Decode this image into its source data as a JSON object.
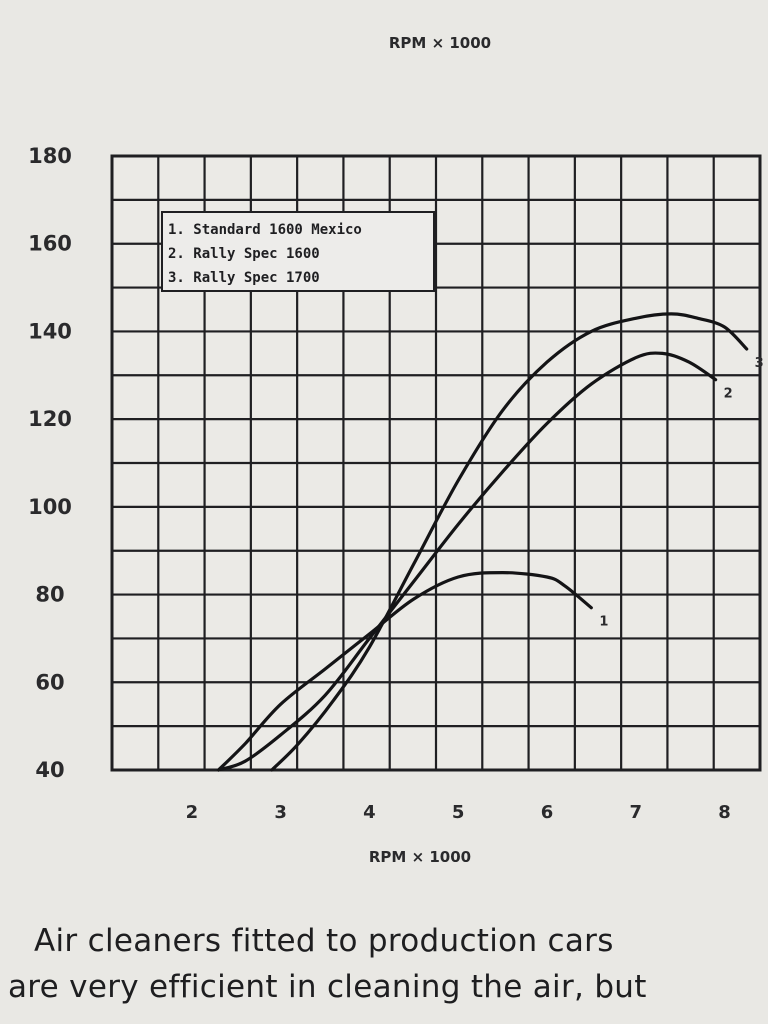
{
  "chart_data": {
    "type": "line",
    "title": "RPM × 1000",
    "xlabel": "RPM × 1000",
    "ylabel": "",
    "xlim": [
      1.1,
      8.4
    ],
    "ylim": [
      40,
      180
    ],
    "x_ticks": [
      "2",
      "3",
      "4",
      "5",
      "6",
      "7",
      "8"
    ],
    "y_ticks": [
      "40",
      "60",
      "80",
      "100",
      "120",
      "140",
      "160",
      "180"
    ],
    "grid": true,
    "legend_position": "top-left",
    "legend": [
      "1. Standard 1600 Mexico",
      "2. Rally Spec 1600",
      "3. Rally Spec 1700"
    ],
    "series": [
      {
        "name": "1",
        "x": [
          2.3,
          2.6,
          3.0,
          3.5,
          4.0,
          4.5,
          5.0,
          5.5,
          6.0,
          6.2,
          6.5
        ],
        "y": [
          40,
          46,
          55,
          63,
          71,
          79,
          84,
          85,
          84,
          82,
          77
        ]
      },
      {
        "name": "2",
        "x": [
          2.3,
          2.6,
          3.0,
          3.5,
          4.0,
          4.5,
          5.0,
          5.5,
          6.0,
          6.5,
          7.0,
          7.3,
          7.6,
          7.9
        ],
        "y": [
          40,
          42,
          48,
          57,
          70,
          83,
          96,
          108,
          119,
          128,
          134,
          135,
          133,
          129
        ]
      },
      {
        "name": "3",
        "x": [
          2.9,
          3.2,
          3.6,
          4.0,
          4.5,
          5.0,
          5.5,
          6.0,
          6.5,
          7.0,
          7.4,
          7.7,
          8.0,
          8.25
        ],
        "y": [
          40,
          46,
          56,
          68,
          87,
          106,
          122,
          133,
          140,
          143,
          144,
          143,
          141,
          136
        ]
      }
    ],
    "series_labels": [
      "1",
      "2",
      "3"
    ]
  },
  "text": {
    "lines": [
      "Air cleaners fitted to production cars",
      "are very efficient in cleaning the air, but"
    ]
  }
}
